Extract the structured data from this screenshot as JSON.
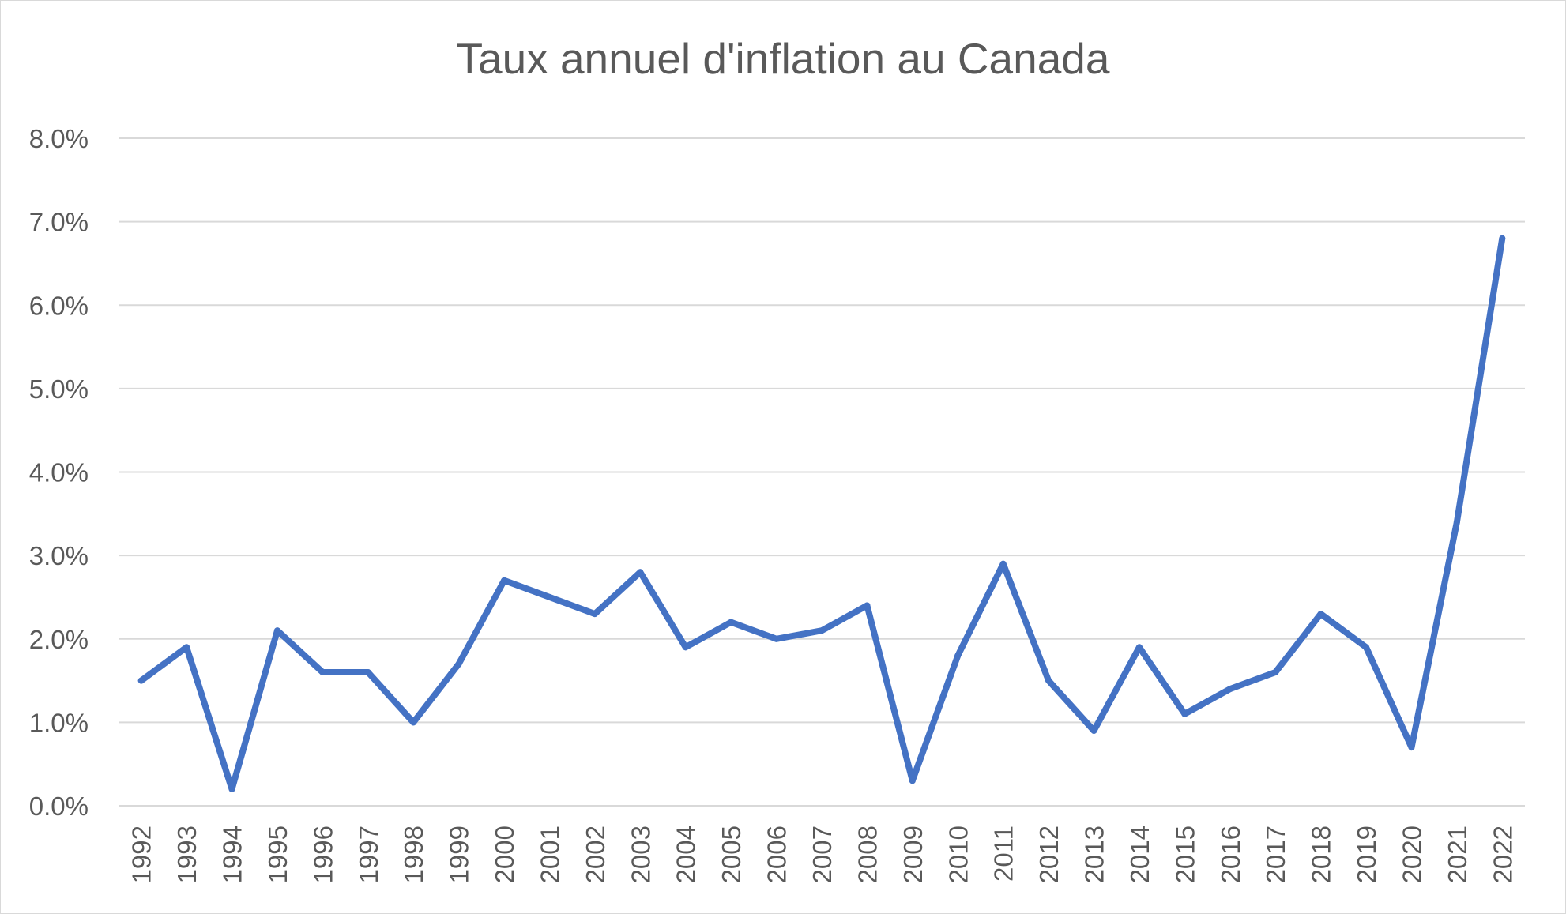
{
  "chart_data": {
    "type": "line",
    "title": "Taux annuel d'inflation au Canada",
    "xlabel": "",
    "ylabel": "",
    "categories": [
      "1992",
      "1993",
      "1994",
      "1995",
      "1996",
      "1997",
      "1998",
      "1999",
      "2000",
      "2001",
      "2002",
      "2003",
      "2004",
      "2005",
      "2006",
      "2007",
      "2008",
      "2009",
      "2010",
      "2011",
      "2012",
      "2013",
      "2014",
      "2015",
      "2016",
      "2017",
      "2018",
      "2019",
      "2020",
      "2021",
      "2022"
    ],
    "series": [
      {
        "values": [
          1.5,
          1.9,
          0.2,
          2.1,
          1.6,
          1.6,
          1.0,
          1.7,
          2.7,
          2.5,
          2.3,
          2.8,
          1.9,
          2.2,
          2.0,
          2.1,
          2.4,
          0.3,
          1.8,
          2.9,
          1.5,
          0.9,
          1.9,
          1.1,
          1.4,
          1.6,
          2.3,
          1.9,
          0.7,
          3.4,
          6.8
        ],
        "color": "#4472c4"
      }
    ],
    "ylim": [
      0,
      8
    ],
    "yticks": [
      "0.0%",
      "1.0%",
      "2.0%",
      "3.0%",
      "4.0%",
      "5.0%",
      "6.0%",
      "7.0%",
      "8.0%"
    ],
    "grid": true,
    "gridline_color": "#d9d9d9",
    "legend": "none"
  }
}
